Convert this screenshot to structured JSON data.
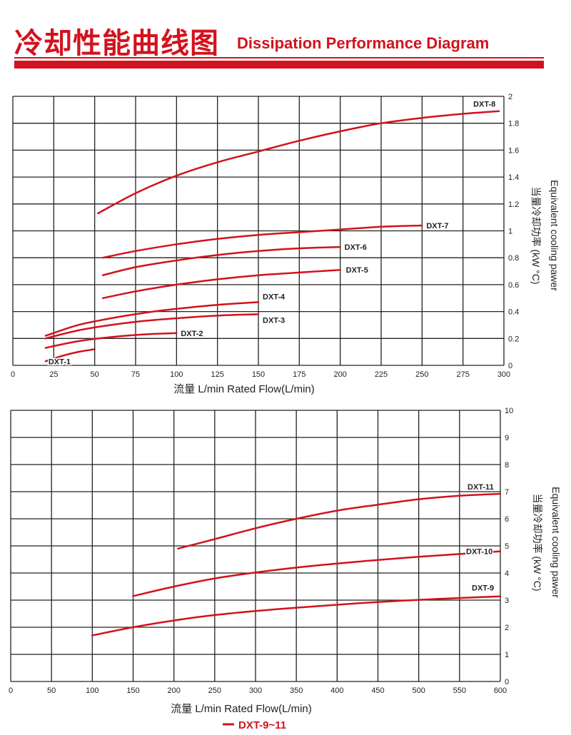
{
  "header": {
    "title_cn": "冷却性能曲线图",
    "title_en": "Dissipation Performance Diagram"
  },
  "accent_color": "#d2121d",
  "footer": {
    "legend_label": "DXT-9~11"
  },
  "chart_data": [
    {
      "type": "line",
      "xlabel": "流量 L/min  Rated Flow(L/min)",
      "ylabel_en": "Equivalent cooling pawer",
      "ylabel_cn": "当量冷却功率  (kW °C)",
      "xlim": [
        0,
        300
      ],
      "ylim": [
        0,
        2
      ],
      "x_ticks": [
        "0",
        "25",
        "50",
        "75",
        "100",
        "125",
        "150",
        "175",
        "200",
        "225",
        "250",
        "275",
        "300"
      ],
      "y_ticks": [
        "0",
        "0.2",
        "0.4",
        "0.6",
        "0.8",
        "1",
        "1.2",
        "1.4",
        "1.6",
        "1.8",
        "2"
      ],
      "series": [
        {
          "name": "DXT-1",
          "x": [
            20,
            30,
            40,
            50
          ],
          "y": [
            0.03,
            0.07,
            0.1,
            0.12
          ]
        },
        {
          "name": "DXT-2",
          "x": [
            20,
            40,
            60,
            80,
            100
          ],
          "y": [
            0.13,
            0.18,
            0.21,
            0.23,
            0.24
          ]
        },
        {
          "name": "DXT-3",
          "x": [
            20,
            40,
            60,
            80,
            100,
            125,
            150
          ],
          "y": [
            0.2,
            0.26,
            0.3,
            0.33,
            0.35,
            0.37,
            0.38
          ]
        },
        {
          "name": "DXT-4",
          "x": [
            20,
            40,
            60,
            80,
            100,
            125,
            150
          ],
          "y": [
            0.22,
            0.3,
            0.35,
            0.39,
            0.42,
            0.45,
            0.47
          ]
        },
        {
          "name": "DXT-5",
          "x": [
            55,
            75,
            100,
            125,
            150,
            175,
            200
          ],
          "y": [
            0.5,
            0.55,
            0.6,
            0.64,
            0.67,
            0.69,
            0.71
          ]
        },
        {
          "name": "DXT-6",
          "x": [
            55,
            75,
            100,
            125,
            150,
            175,
            200
          ],
          "y": [
            0.67,
            0.73,
            0.78,
            0.82,
            0.85,
            0.87,
            0.88
          ]
        },
        {
          "name": "DXT-7",
          "x": [
            55,
            75,
            100,
            125,
            150,
            175,
            200,
            225,
            250
          ],
          "y": [
            0.8,
            0.85,
            0.9,
            0.94,
            0.97,
            0.99,
            1.01,
            1.03,
            1.04
          ]
        },
        {
          "name": "DXT-8",
          "x": [
            52,
            75,
            100,
            125,
            150,
            175,
            200,
            225,
            250,
            275,
            297
          ],
          "y": [
            1.13,
            1.28,
            1.41,
            1.51,
            1.59,
            1.67,
            1.74,
            1.8,
            1.84,
            1.87,
            1.89
          ]
        }
      ]
    },
    {
      "type": "line",
      "xlabel": "流量 L/min  Rated Flow(L/min)",
      "ylabel_en": "Equivalent cooling pawer",
      "ylabel_cn": "当量冷却功率  (kW °C)",
      "xlim": [
        0,
        600
      ],
      "ylim": [
        0,
        10
      ],
      "x_ticks": [
        "0",
        "50",
        "100",
        "150",
        "200",
        "250",
        "300",
        "350",
        "400",
        "450",
        "500",
        "550",
        "600"
      ],
      "y_ticks": [
        "0",
        "1",
        "2",
        "3",
        "4",
        "5",
        "6",
        "7",
        "8",
        "9",
        "10"
      ],
      "series": [
        {
          "name": "DXT-9",
          "x": [
            100,
            150,
            200,
            250,
            300,
            350,
            400,
            450,
            500,
            550,
            600
          ],
          "y": [
            1.7,
            2.0,
            2.25,
            2.45,
            2.6,
            2.72,
            2.83,
            2.93,
            3.01,
            3.08,
            3.14
          ]
        },
        {
          "name": "DXT-10",
          "x": [
            150,
            200,
            250,
            300,
            350,
            400,
            450,
            500,
            550,
            600
          ],
          "y": [
            3.15,
            3.5,
            3.8,
            4.02,
            4.2,
            4.35,
            4.48,
            4.6,
            4.7,
            4.8
          ]
        },
        {
          "name": "DXT-11",
          "x": [
            205,
            250,
            300,
            350,
            400,
            450,
            500,
            550,
            600
          ],
          "y": [
            4.9,
            5.25,
            5.65,
            6.0,
            6.3,
            6.52,
            6.72,
            6.85,
            6.92
          ]
        }
      ]
    }
  ]
}
